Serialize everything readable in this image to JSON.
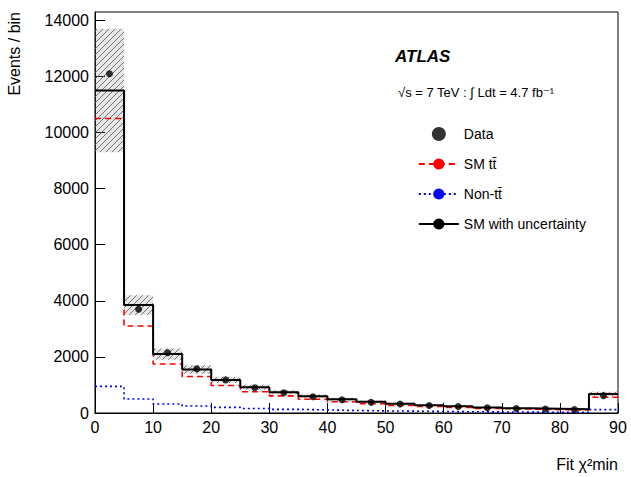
{
  "chart_data": {
    "type": "histogram",
    "x_label": "Fit χ²min",
    "y_label": "Events / bin",
    "annotations": [
      "ATLAS",
      "√s = 7 TeV : ∫ Ldt = 4.7 fb⁻¹"
    ],
    "bins": [
      0,
      5,
      10,
      15,
      20,
      25,
      30,
      35,
      40,
      45,
      50,
      55,
      60,
      65,
      70,
      75,
      80,
      85,
      90
    ],
    "xlim": [
      0,
      90
    ],
    "xticks": [
      0,
      10,
      20,
      30,
      40,
      50,
      60,
      70,
      80,
      90
    ],
    "ylim": [
      0,
      14300
    ],
    "yticks": [
      0,
      2000,
      4000,
      6000,
      8000,
      10000,
      12000,
      14000
    ],
    "grid": false,
    "legend": "upper right",
    "series": [
      {
        "name": "Data",
        "type": "scatter",
        "marker": "circle",
        "color": "#000000",
        "values": [
          12100,
          3700,
          2150,
          1580,
          1180,
          900,
          720,
          580,
          470,
          380,
          320,
          270,
          230,
          190,
          160,
          140,
          120,
          620
        ]
      },
      {
        "name": "SM tt̄",
        "type": "step",
        "line_style": "dashed",
        "color": "#ff0000",
        "values": [
          10500,
          3100,
          1750,
          1300,
          980,
          760,
          610,
          490,
          400,
          330,
          270,
          230,
          195,
          165,
          140,
          120,
          105,
          560
        ]
      },
      {
        "name": "Non-tt̄",
        "type": "step",
        "line_style": "dotted",
        "color": "#0000ff",
        "values": [
          950,
          500,
          320,
          250,
          200,
          160,
          130,
          110,
          90,
          75,
          65,
          55,
          45,
          38,
          32,
          28,
          25,
          120
        ]
      },
      {
        "name": "SM with uncertainty",
        "type": "step",
        "line_style": "solid",
        "color": "#000000",
        "values": [
          11500,
          3850,
          2100,
          1550,
          1180,
          920,
          740,
          600,
          490,
          400,
          330,
          280,
          240,
          200,
          170,
          150,
          130,
          680
        ],
        "uncertainty": [
          2200,
          350,
          200,
          150,
          110,
          90,
          70,
          60,
          50,
          40,
          35,
          30,
          25,
          20,
          20,
          15,
          15,
          80
        ]
      }
    ]
  }
}
